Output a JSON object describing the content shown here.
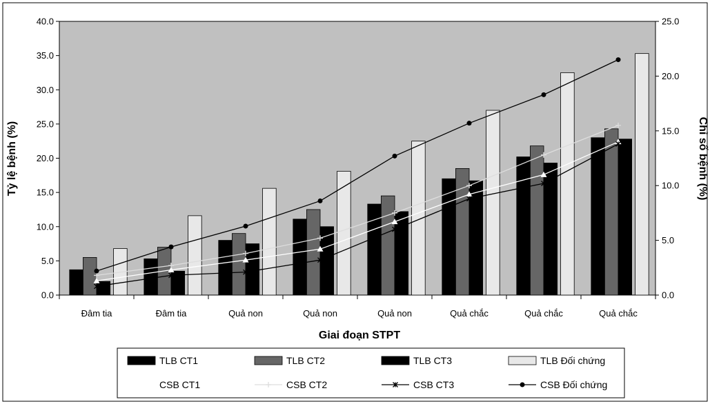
{
  "chart_data": {
    "type": "bar",
    "categories": [
      "Đâm tia",
      "Đâm tia",
      "Quả non",
      "Quả non",
      "Quả non",
      "Quả chắc",
      "Quả chắc",
      "Quả chắc"
    ],
    "xlabel": "Giai đoạn STPT",
    "ylabel": "Tỷ lệ bệnh (%)",
    "y2label": "Chỉ số bệnh (%)",
    "ylim": [
      0,
      40
    ],
    "y2lim": [
      0,
      25
    ],
    "yticks": [
      "0.0",
      "5.0",
      "10.0",
      "15.0",
      "20.0",
      "25.0",
      "30.0",
      "35.0",
      "40.0"
    ],
    "y2ticks": [
      "0.0",
      "5.0",
      "10.0",
      "15.0",
      "20.0",
      "25.0"
    ],
    "plot_background": "#c0c0c0",
    "legend_position": "bottom",
    "bar_series": [
      {
        "name": "TLB CT1",
        "color": "#000000",
        "values": [
          3.7,
          5.3,
          8.0,
          11.1,
          13.3,
          17.0,
          20.2,
          23.0
        ]
      },
      {
        "name": "TLB CT2",
        "color": "#666666",
        "values": [
          5.5,
          7.0,
          9.0,
          12.5,
          14.5,
          18.5,
          21.8,
          24.3
        ]
      },
      {
        "name": "TLB CT3",
        "color": "#000000",
        "values": [
          2.0,
          3.5,
          7.5,
          10.0,
          12.2,
          16.7,
          19.3,
          22.8
        ]
      },
      {
        "name": "TLB Đối chứng",
        "color": "#e8e8e8",
        "values": [
          6.8,
          11.6,
          15.6,
          18.1,
          22.5,
          27.0,
          32.5,
          35.3
        ]
      }
    ],
    "line_series": [
      {
        "name": "CSB CT1",
        "color": "#ffffff",
        "marker": "triangle",
        "values": [
          1.3,
          2.3,
          3.2,
          4.2,
          6.7,
          9.2,
          11.0,
          14.0
        ]
      },
      {
        "name": "CSB CT2",
        "color": "#dddddd",
        "marker": "cross",
        "values": [
          1.8,
          2.7,
          3.8,
          5.2,
          7.5,
          10.0,
          12.8,
          15.5
        ]
      },
      {
        "name": "CSB CT3",
        "color": "#000000",
        "marker": "x",
        "values": [
          0.8,
          1.8,
          2.1,
          3.2,
          6.0,
          8.8,
          10.2,
          13.8
        ]
      },
      {
        "name": "CSB Đối chứng",
        "color": "#000000",
        "marker": "circle",
        "values": [
          2.2,
          4.4,
          6.3,
          8.6,
          12.7,
          15.7,
          18.3,
          21.5
        ]
      }
    ]
  }
}
